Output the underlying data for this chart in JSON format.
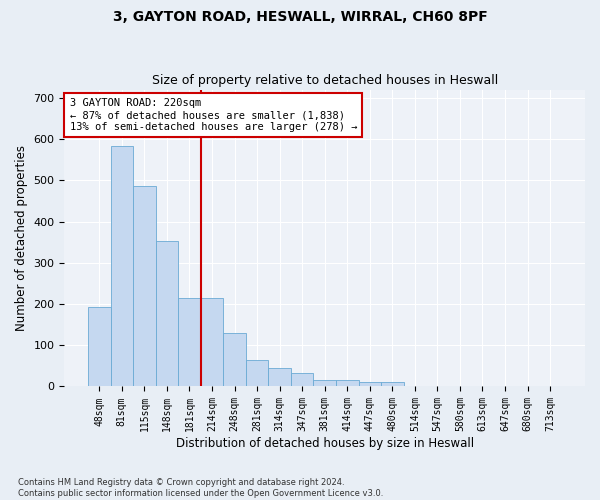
{
  "title_line1": "3, GAYTON ROAD, HESWALL, WIRRAL, CH60 8PF",
  "title_line2": "Size of property relative to detached houses in Heswall",
  "xlabel": "Distribution of detached houses by size in Heswall",
  "ylabel": "Number of detached properties",
  "footnote": "Contains HM Land Registry data © Crown copyright and database right 2024.\nContains public sector information licensed under the Open Government Licence v3.0.",
  "bin_labels": [
    "48sqm",
    "81sqm",
    "115sqm",
    "148sqm",
    "181sqm",
    "214sqm",
    "248sqm",
    "281sqm",
    "314sqm",
    "347sqm",
    "381sqm",
    "414sqm",
    "447sqm",
    "480sqm",
    "514sqm",
    "547sqm",
    "580sqm",
    "613sqm",
    "647sqm",
    "680sqm",
    "713sqm"
  ],
  "bar_values": [
    193,
    582,
    487,
    352,
    214,
    214,
    130,
    63,
    44,
    32,
    15,
    15,
    10,
    10,
    0,
    0,
    0,
    0,
    0,
    0,
    0
  ],
  "bar_color": "#c5d8f0",
  "bar_edge_color": "#6aaad4",
  "vline_color": "#cc0000",
  "annotation_text": "3 GAYTON ROAD: 220sqm\n← 87% of detached houses are smaller (1,838)\n13% of semi-detached houses are larger (278) →",
  "annotation_box_color": "#ffffff",
  "annotation_box_edge_color": "#cc0000",
  "ylim": [
    0,
    720
  ],
  "yticks": [
    0,
    100,
    200,
    300,
    400,
    500,
    600,
    700
  ],
  "bg_color": "#e8eef5",
  "plot_bg_color": "#eef2f8",
  "grid_color": "#ffffff",
  "title1_fontsize": 10,
  "title2_fontsize": 9,
  "xlabel_fontsize": 8.5,
  "ylabel_fontsize": 8.5,
  "tick_fontsize": 7,
  "ann_fontsize": 7.5,
  "footnote_fontsize": 6
}
